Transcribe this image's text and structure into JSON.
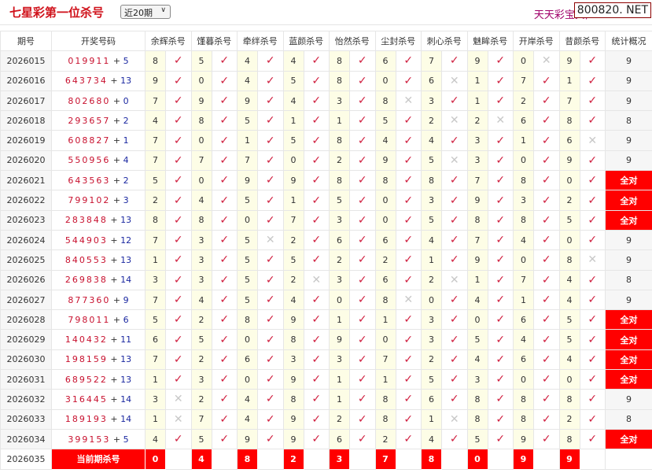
{
  "header": {
    "title": "七星彩第一位杀号",
    "period_select": "近20期",
    "brand": "天天彩宝贝,",
    "site": "800820. NET"
  },
  "table": {
    "columns": [
      "期号",
      "开奖号码",
      "余辉杀号",
      "馑暮杀号",
      "牵绊杀号",
      "蓝颜杀号",
      "怡然杀号",
      "尘封杀号",
      "刺心杀号",
      "魅眸杀号",
      "开岸杀号",
      "昔颜杀号",
      "统计概况"
    ],
    "rows": [
      {
        "period": "2026015",
        "main": "019911",
        "extra": "5",
        "kills": [
          8,
          5,
          4,
          4,
          8,
          6,
          7,
          9,
          0,
          9
        ],
        "hits": [
          1,
          1,
          1,
          1,
          1,
          1,
          1,
          1,
          0,
          1
        ],
        "stat": "9"
      },
      {
        "period": "2026016",
        "main": "643734",
        "extra": "13",
        "kills": [
          9,
          0,
          4,
          5,
          8,
          0,
          6,
          1,
          7,
          1
        ],
        "hits": [
          1,
          1,
          1,
          1,
          1,
          1,
          0,
          1,
          1,
          1
        ],
        "stat": "9"
      },
      {
        "period": "2026017",
        "main": "802680",
        "extra": "0",
        "kills": [
          7,
          9,
          9,
          4,
          3,
          8,
          3,
          1,
          2,
          7
        ],
        "hits": [
          1,
          1,
          1,
          1,
          1,
          0,
          1,
          1,
          1,
          1
        ],
        "stat": "9"
      },
      {
        "period": "2026018",
        "main": "293657",
        "extra": "2",
        "kills": [
          4,
          8,
          5,
          1,
          1,
          5,
          2,
          2,
          6,
          8
        ],
        "hits": [
          1,
          1,
          1,
          1,
          1,
          1,
          0,
          0,
          1,
          1
        ],
        "stat": "8"
      },
      {
        "period": "2026019",
        "main": "608827",
        "extra": "1",
        "kills": [
          7,
          0,
          1,
          5,
          8,
          4,
          4,
          3,
          1,
          6
        ],
        "hits": [
          1,
          1,
          1,
          1,
          1,
          1,
          1,
          1,
          1,
          0
        ],
        "stat": "9"
      },
      {
        "period": "2026020",
        "main": "550956",
        "extra": "4",
        "kills": [
          7,
          7,
          7,
          0,
          2,
          9,
          5,
          3,
          0,
          9
        ],
        "hits": [
          1,
          1,
          1,
          1,
          1,
          1,
          0,
          1,
          1,
          1
        ],
        "stat": "9"
      },
      {
        "period": "2026021",
        "main": "643563",
        "extra": "2",
        "kills": [
          5,
          0,
          9,
          9,
          8,
          8,
          8,
          7,
          8,
          0
        ],
        "hits": [
          1,
          1,
          1,
          1,
          1,
          1,
          1,
          1,
          1,
          1
        ],
        "stat": "全对"
      },
      {
        "period": "2026022",
        "main": "799102",
        "extra": "3",
        "kills": [
          2,
          4,
          5,
          1,
          5,
          0,
          3,
          9,
          3,
          2
        ],
        "hits": [
          1,
          1,
          1,
          1,
          1,
          1,
          1,
          1,
          1,
          1
        ],
        "stat": "全对"
      },
      {
        "period": "2026023",
        "main": "283848",
        "extra": "13",
        "kills": [
          8,
          8,
          0,
          7,
          3,
          0,
          5,
          8,
          8,
          5
        ],
        "hits": [
          1,
          1,
          1,
          1,
          1,
          1,
          1,
          1,
          1,
          1
        ],
        "stat": "全对"
      },
      {
        "period": "2026024",
        "main": "544903",
        "extra": "12",
        "kills": [
          7,
          3,
          5,
          2,
          6,
          6,
          4,
          7,
          4,
          0
        ],
        "hits": [
          1,
          1,
          0,
          1,
          1,
          1,
          1,
          1,
          1,
          1
        ],
        "stat": "9"
      },
      {
        "period": "2026025",
        "main": "840553",
        "extra": "13",
        "kills": [
          1,
          3,
          5,
          5,
          2,
          2,
          1,
          9,
          0,
          8
        ],
        "hits": [
          1,
          1,
          1,
          1,
          1,
          1,
          1,
          1,
          1,
          0
        ],
        "stat": "9"
      },
      {
        "period": "2026026",
        "main": "269838",
        "extra": "14",
        "kills": [
          3,
          3,
          5,
          2,
          3,
          6,
          2,
          1,
          7,
          4
        ],
        "hits": [
          1,
          1,
          1,
          0,
          1,
          1,
          0,
          1,
          1,
          1
        ],
        "stat": "8"
      },
      {
        "period": "2026027",
        "main": "877360",
        "extra": "9",
        "kills": [
          7,
          4,
          5,
          4,
          0,
          8,
          0,
          4,
          1,
          4
        ],
        "hits": [
          1,
          1,
          1,
          1,
          1,
          0,
          1,
          1,
          1,
          1
        ],
        "stat": "9"
      },
      {
        "period": "2026028",
        "main": "798011",
        "extra": "6",
        "kills": [
          5,
          2,
          8,
          9,
          1,
          1,
          3,
          0,
          6,
          5
        ],
        "hits": [
          1,
          1,
          1,
          1,
          1,
          1,
          1,
          1,
          1,
          1
        ],
        "stat": "全对"
      },
      {
        "period": "2026029",
        "main": "140432",
        "extra": "11",
        "kills": [
          6,
          5,
          0,
          8,
          9,
          0,
          3,
          5,
          4,
          5
        ],
        "hits": [
          1,
          1,
          1,
          1,
          1,
          1,
          1,
          1,
          1,
          1
        ],
        "stat": "全对"
      },
      {
        "period": "2026030",
        "main": "198159",
        "extra": "13",
        "kills": [
          7,
          2,
          6,
          3,
          3,
          7,
          2,
          4,
          6,
          4
        ],
        "hits": [
          1,
          1,
          1,
          1,
          1,
          1,
          1,
          1,
          1,
          1
        ],
        "stat": "全对"
      },
      {
        "period": "2026031",
        "main": "689522",
        "extra": "13",
        "kills": [
          1,
          3,
          0,
          9,
          1,
          1,
          5,
          3,
          0,
          0
        ],
        "hits": [
          1,
          1,
          1,
          1,
          1,
          1,
          1,
          1,
          1,
          1
        ],
        "stat": "全对"
      },
      {
        "period": "2026032",
        "main": "316445",
        "extra": "14",
        "kills": [
          3,
          2,
          4,
          8,
          1,
          8,
          6,
          8,
          8,
          8
        ],
        "hits": [
          0,
          1,
          1,
          1,
          1,
          1,
          1,
          1,
          1,
          1
        ],
        "stat": "9"
      },
      {
        "period": "2026033",
        "main": "189193",
        "extra": "14",
        "kills": [
          1,
          7,
          4,
          9,
          2,
          8,
          1,
          8,
          8,
          2
        ],
        "hits": [
          0,
          1,
          1,
          1,
          1,
          1,
          0,
          1,
          1,
          1
        ],
        "stat": "8"
      },
      {
        "period": "2026034",
        "main": "399153",
        "extra": "5",
        "kills": [
          4,
          5,
          9,
          9,
          6,
          2,
          4,
          5,
          9,
          8
        ],
        "hits": [
          1,
          1,
          1,
          1,
          1,
          1,
          1,
          1,
          1,
          1
        ],
        "stat": "全对"
      }
    ],
    "current": {
      "period": "2026035",
      "label": "当前期杀号",
      "kills": [
        0,
        4,
        8,
        2,
        3,
        7,
        8,
        0,
        9,
        9
      ]
    },
    "marks": {
      "hit": "✓",
      "miss": "✕"
    }
  },
  "colors": {
    "accent": "#ff0000",
    "check": "#d02040",
    "brand": "#a0006a"
  }
}
